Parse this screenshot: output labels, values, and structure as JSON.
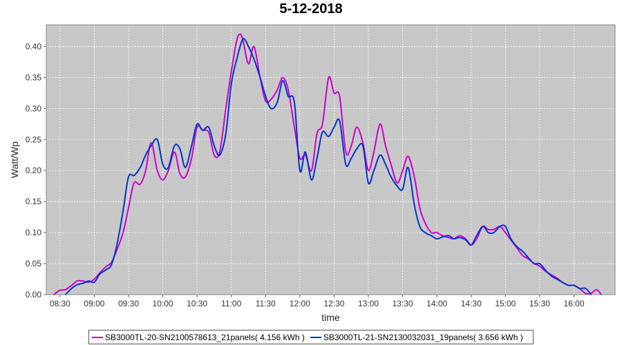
{
  "chart_data": {
    "type": "line",
    "title": "5-12-2018",
    "xlabel": "time",
    "ylabel": "Watt/Wp",
    "x_unit": "time of day (hours)",
    "xlim": [
      8.3,
      16.6
    ],
    "ylim": [
      0.0,
      0.435
    ],
    "x_ticks": [
      8.5,
      9.0,
      9.5,
      10.0,
      10.5,
      11.0,
      11.5,
      12.0,
      12.5,
      13.0,
      13.5,
      14.0,
      14.5,
      15.0,
      15.5,
      16.0
    ],
    "x_tick_labels": [
      "08:30",
      "09:00",
      "09:30",
      "10:00",
      "10:30",
      "11:00",
      "11:30",
      "12:00",
      "12:30",
      "13:00",
      "13:30",
      "14:00",
      "14:30",
      "15:00",
      "15:30",
      "16:00"
    ],
    "y_ticks": [
      0.0,
      0.05,
      0.1,
      0.15,
      0.2,
      0.25,
      0.3,
      0.35,
      0.4
    ],
    "y_tick_labels": [
      "0.00",
      "0.05",
      "0.10",
      "0.15",
      "0.20",
      "0.25",
      "0.30",
      "0.35",
      "0.40"
    ],
    "grid": true,
    "legend_position": "bottom",
    "plot_background": "#c8c8c8",
    "series": [
      {
        "name": "SB3000TL-20-SN2100578613_21panels( 4.156 kWh )",
        "color": "#cc00cc",
        "x": [
          8.41,
          8.5,
          8.58,
          8.67,
          8.75,
          8.83,
          8.92,
          9.0,
          9.08,
          9.17,
          9.25,
          9.33,
          9.42,
          9.5,
          9.58,
          9.67,
          9.75,
          9.83,
          9.92,
          10.0,
          10.08,
          10.17,
          10.25,
          10.33,
          10.42,
          10.5,
          10.58,
          10.67,
          10.75,
          10.83,
          10.92,
          11.0,
          11.08,
          11.13,
          11.17,
          11.25,
          11.33,
          11.42,
          11.5,
          11.58,
          11.67,
          11.75,
          11.83,
          11.92,
          12.0,
          12.08,
          12.17,
          12.25,
          12.33,
          12.42,
          12.5,
          12.58,
          12.67,
          12.75,
          12.83,
          12.92,
          13.0,
          13.08,
          13.17,
          13.25,
          13.33,
          13.42,
          13.5,
          13.58,
          13.67,
          13.75,
          13.83,
          13.92,
          14.0,
          14.08,
          14.17,
          14.25,
          14.33,
          14.42,
          14.5,
          14.58,
          14.67,
          14.75,
          14.83,
          14.92,
          15.0,
          15.08,
          15.17,
          15.25,
          15.33,
          15.42,
          15.5,
          15.58,
          15.67,
          15.75,
          15.83,
          15.92,
          16.0,
          16.08,
          16.17,
          16.25,
          16.33,
          16.4
        ],
        "y": [
          0.0,
          0.007,
          0.008,
          0.015,
          0.022,
          0.022,
          0.02,
          0.025,
          0.035,
          0.045,
          0.052,
          0.072,
          0.1,
          0.14,
          0.18,
          0.178,
          0.2,
          0.245,
          0.2,
          0.185,
          0.2,
          0.23,
          0.195,
          0.19,
          0.22,
          0.27,
          0.265,
          0.262,
          0.225,
          0.23,
          0.3,
          0.36,
          0.41,
          0.42,
          0.41,
          0.372,
          0.4,
          0.35,
          0.312,
          0.315,
          0.33,
          0.35,
          0.33,
          0.27,
          0.22,
          0.225,
          0.2,
          0.26,
          0.275,
          0.35,
          0.325,
          0.32,
          0.23,
          0.24,
          0.27,
          0.245,
          0.2,
          0.23,
          0.275,
          0.24,
          0.21,
          0.18,
          0.2,
          0.223,
          0.19,
          0.14,
          0.115,
          0.1,
          0.1,
          0.095,
          0.092,
          0.09,
          0.095,
          0.09,
          0.08,
          0.09,
          0.11,
          0.105,
          0.105,
          0.11,
          0.1,
          0.088,
          0.075,
          0.063,
          0.058,
          0.05,
          0.046,
          0.038,
          0.032,
          0.027,
          0.02,
          0.015,
          0.015,
          0.01,
          0.002,
          0.002,
          0.008,
          0.0
        ]
      },
      {
        "name": "SB3000TL-21-SN2130032031_19panels( 3.656 kWh )",
        "color": "#0033cc",
        "x": [
          8.58,
          8.67,
          8.75,
          8.83,
          8.92,
          9.0,
          9.08,
          9.17,
          9.25,
          9.33,
          9.42,
          9.5,
          9.58,
          9.67,
          9.75,
          9.83,
          9.92,
          10.0,
          10.08,
          10.17,
          10.25,
          10.33,
          10.42,
          10.5,
          10.58,
          10.67,
          10.75,
          10.83,
          10.92,
          11.0,
          11.08,
          11.17,
          11.25,
          11.33,
          11.42,
          11.5,
          11.58,
          11.67,
          11.75,
          11.83,
          11.92,
          12.0,
          12.08,
          12.17,
          12.25,
          12.33,
          12.42,
          12.5,
          12.58,
          12.67,
          12.75,
          12.83,
          12.92,
          13.0,
          13.08,
          13.17,
          13.25,
          13.33,
          13.42,
          13.5,
          13.58,
          13.67,
          13.75,
          13.83,
          13.92,
          14.0,
          14.08,
          14.17,
          14.25,
          14.33,
          14.42,
          14.5,
          14.58,
          14.67,
          14.75,
          14.83,
          14.92,
          15.0,
          15.08,
          15.17,
          15.25,
          15.33,
          15.42,
          15.5,
          15.58,
          15.67,
          15.75,
          15.83,
          15.92,
          16.0,
          16.08,
          16.17,
          16.25
        ],
        "y": [
          0.0,
          0.01,
          0.016,
          0.018,
          0.022,
          0.02,
          0.033,
          0.04,
          0.048,
          0.08,
          0.135,
          0.19,
          0.192,
          0.205,
          0.225,
          0.24,
          0.25,
          0.21,
          0.205,
          0.24,
          0.235,
          0.205,
          0.24,
          0.275,
          0.265,
          0.27,
          0.24,
          0.225,
          0.26,
          0.34,
          0.38,
          0.412,
          0.4,
          0.38,
          0.35,
          0.32,
          0.3,
          0.31,
          0.345,
          0.32,
          0.31,
          0.2,
          0.23,
          0.185,
          0.22,
          0.262,
          0.255,
          0.27,
          0.28,
          0.21,
          0.22,
          0.235,
          0.24,
          0.18,
          0.2,
          0.225,
          0.21,
          0.19,
          0.175,
          0.17,
          0.205,
          0.145,
          0.11,
          0.1,
          0.095,
          0.09,
          0.093,
          0.095,
          0.09,
          0.092,
          0.088,
          0.08,
          0.095,
          0.11,
          0.1,
          0.1,
          0.11,
          0.11,
          0.09,
          0.077,
          0.07,
          0.06,
          0.05,
          0.05,
          0.04,
          0.03,
          0.025,
          0.02,
          0.015,
          0.015,
          0.01,
          0.01,
          0.0
        ]
      }
    ]
  }
}
